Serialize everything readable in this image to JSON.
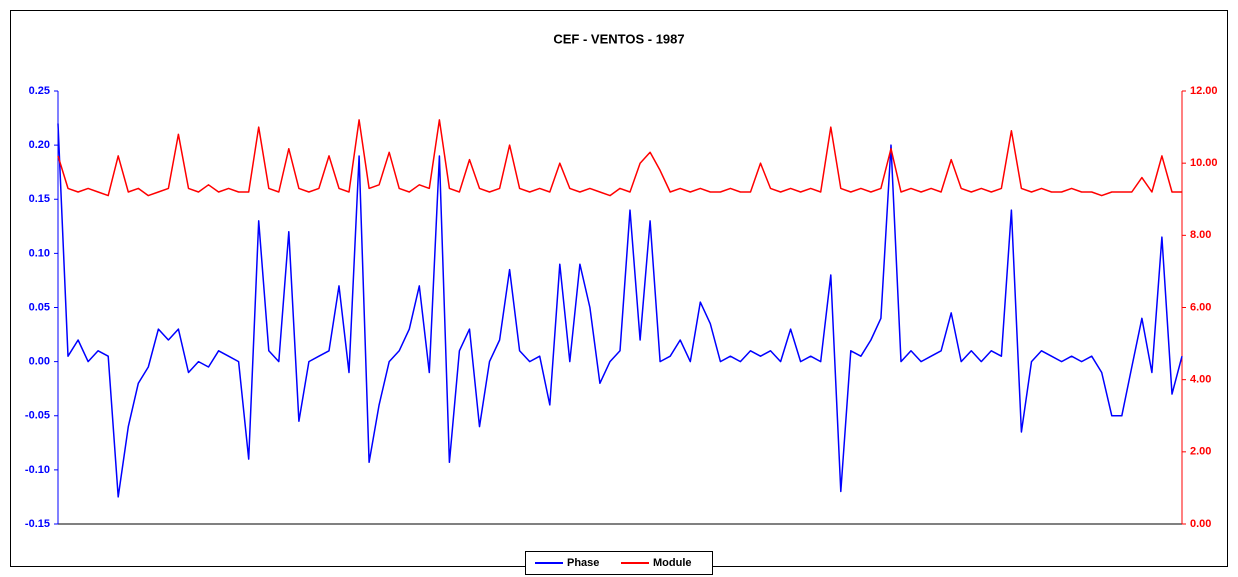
{
  "chart_data": {
    "type": "line",
    "title": "CEF - VENTOS - 1987",
    "ylim": [
      -0.15,
      0.25
    ],
    "yticks": [
      0.25,
      {
        "value": 0.2,
        "label": "0.20"
      },
      0.15,
      {
        "value": 0.1,
        "label": "0.10"
      },
      0.05,
      {
        "value": 0,
        "label": "0.00"
      },
      -0.05,
      {
        "value": -0.1,
        "label": "-0.10"
      },
      -0.15
    ],
    "y2lim": [
      0,
      12
    ],
    "y2ticks": [
      {
        "value": 12,
        "label": "12.00"
      },
      {
        "value": 10,
        "label": "10.00"
      },
      {
        "value": 8,
        "label": "8.00"
      },
      {
        "value": 6,
        "label": "6.00"
      },
      {
        "value": 4,
        "label": "4.00"
      },
      {
        "value": 2,
        "label": "2.00"
      },
      {
        "value": 0,
        "label": "0.00"
      }
    ],
    "legend": "bottom",
    "series": [
      {
        "name": "Phase",
        "color": "#0000ff",
        "values": [
          0.22,
          0.005,
          0.02,
          0.0,
          0.01,
          0.005,
          -0.125,
          -0.06,
          -0.02,
          -0.005,
          0.03,
          0.02,
          0.03,
          -0.01,
          0.0,
          -0.005,
          0.01,
          0.005,
          0.0,
          -0.09,
          0.13,
          0.01,
          0.0,
          0.12,
          -0.055,
          0.0,
          0.005,
          0.01,
          0.07,
          -0.01,
          0.19,
          -0.093,
          -0.04,
          0.0,
          0.01,
          0.03,
          0.07,
          -0.01,
          0.19,
          -0.093,
          0.01,
          0.03,
          -0.06,
          0.0,
          0.02,
          0.085,
          0.01,
          0.0,
          0.005,
          -0.04,
          0.09,
          0.0,
          0.09,
          0.05,
          -0.02,
          0.0,
          0.01,
          0.14,
          0.02,
          0.13,
          0.0,
          0.005,
          0.02,
          0.0,
          0.055,
          0.035,
          0.0,
          0.005,
          0.0,
          0.01,
          0.005,
          0.01,
          0.0,
          0.03,
          0.0,
          0.005,
          0.0,
          0.08,
          -0.12,
          0.01,
          0.005,
          0.02,
          0.04,
          0.2,
          0.0,
          0.01,
          0.0,
          0.005,
          0.01,
          0.045,
          0.0,
          0.01,
          0.0,
          0.01,
          0.005,
          0.14,
          -0.065,
          0.0,
          0.01,
          0.005,
          0.0,
          0.005,
          0.0,
          0.005,
          -0.01,
          -0.05,
          -0.05,
          -0.005,
          0.04,
          -0.01,
          0.115,
          -0.03,
          0.005
        ]
      },
      {
        "name": "Module",
        "color": "#ff0000",
        "axis": "y2",
        "values": [
          10.2,
          9.3,
          9.2,
          9.3,
          9.2,
          9.1,
          10.2,
          9.2,
          9.3,
          9.1,
          9.2,
          9.3,
          10.8,
          9.3,
          9.2,
          9.4,
          9.2,
          9.3,
          9.2,
          9.2,
          11.0,
          9.3,
          9.2,
          10.4,
          9.3,
          9.2,
          9.3,
          10.2,
          9.3,
          9.2,
          11.2,
          9.3,
          9.4,
          10.3,
          9.3,
          9.2,
          9.4,
          9.3,
          11.2,
          9.3,
          9.2,
          10.1,
          9.3,
          9.2,
          9.3,
          10.5,
          9.3,
          9.2,
          9.3,
          9.2,
          10.0,
          9.3,
          9.2,
          9.3,
          9.2,
          9.1,
          9.3,
          9.2,
          10.0,
          10.3,
          9.8,
          9.2,
          9.3,
          9.2,
          9.3,
          9.2,
          9.2,
          9.3,
          9.2,
          9.2,
          10.0,
          9.3,
          9.2,
          9.3,
          9.2,
          9.3,
          9.2,
          11.0,
          9.3,
          9.2,
          9.3,
          9.2,
          9.3,
          10.4,
          9.2,
          9.3,
          9.2,
          9.3,
          9.2,
          10.1,
          9.3,
          9.2,
          9.3,
          9.2,
          9.3,
          10.9,
          9.3,
          9.2,
          9.3,
          9.2,
          9.2,
          9.3,
          9.2,
          9.2,
          9.1,
          9.2,
          9.2,
          9.2,
          9.6,
          9.2,
          10.2,
          9.2,
          9.2
        ]
      }
    ]
  }
}
